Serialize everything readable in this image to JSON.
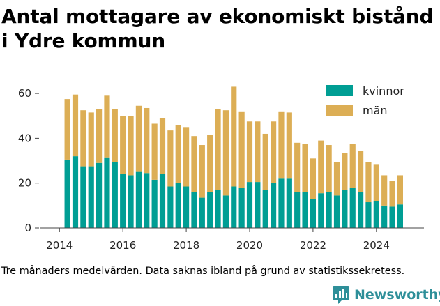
{
  "title": "Antal mottagare av ekonomiskt bistånd i Ydre kommun",
  "caption": "Tre månaders medelvärden. Data saknas ibland på grund av statistikssekretess.",
  "brand": {
    "name": "Newsworthy",
    "color": "#2e8f99"
  },
  "chart_data": {
    "type": "bar",
    "stacked": true,
    "grid": false,
    "legend_position": "top-right",
    "xlim": [
      2013.4,
      2025.5
    ],
    "ylim": [
      0,
      65
    ],
    "x_ticks": [
      2014,
      2016,
      2018,
      2020,
      2022,
      2024
    ],
    "x_tick_labels": [
      "2014",
      "2016",
      "2018",
      "2020",
      "2022",
      "2024"
    ],
    "y_ticks": [
      0,
      20,
      40,
      60
    ],
    "y_tick_labels": [
      "0",
      "20",
      "40",
      "60"
    ],
    "x": [
      2014.25,
      2014.5,
      2014.75,
      2015.0,
      2015.25,
      2015.5,
      2015.75,
      2016.0,
      2016.25,
      2016.5,
      2016.75,
      2017.0,
      2017.25,
      2017.5,
      2017.75,
      2018.0,
      2018.25,
      2018.5,
      2018.75,
      2019.0,
      2019.25,
      2019.5,
      2019.75,
      2020.0,
      2020.25,
      2020.5,
      2020.75,
      2021.0,
      2021.25,
      2021.5,
      2021.75,
      2022.0,
      2022.25,
      2022.5,
      2022.75,
      2023.0,
      2023.25,
      2023.5,
      2023.75,
      2024.0,
      2024.25,
      2024.5,
      2024.75
    ],
    "series": [
      {
        "name": "kvinnor",
        "color": "#009e94",
        "values": [
          30.5,
          32,
          27.5,
          27.5,
          29,
          31.5,
          29.5,
          24,
          23.5,
          25,
          24.5,
          21.5,
          24,
          18.5,
          20,
          18.5,
          16,
          13.5,
          16,
          17,
          14.5,
          18.5,
          18,
          20.5,
          20.5,
          17,
          20,
          22,
          22,
          16,
          16,
          13,
          15.5,
          16,
          14.5,
          17,
          18,
          16,
          11.5,
          12,
          10,
          9.5,
          10.5
        ]
      },
      {
        "name": "män",
        "color": "#dcae55",
        "values": [
          27,
          27.5,
          25,
          24,
          24,
          27.5,
          23.5,
          26,
          26.5,
          29.5,
          29,
          25,
          25,
          25,
          26,
          26.5,
          25,
          23.5,
          25.5,
          36,
          38,
          44.5,
          34,
          27,
          27,
          25,
          27.5,
          30,
          29.5,
          22,
          21.5,
          18,
          23.5,
          21,
          15,
          16.5,
          19.5,
          18.5,
          18,
          16.5,
          13.5,
          11.5,
          13
        ]
      }
    ]
  }
}
